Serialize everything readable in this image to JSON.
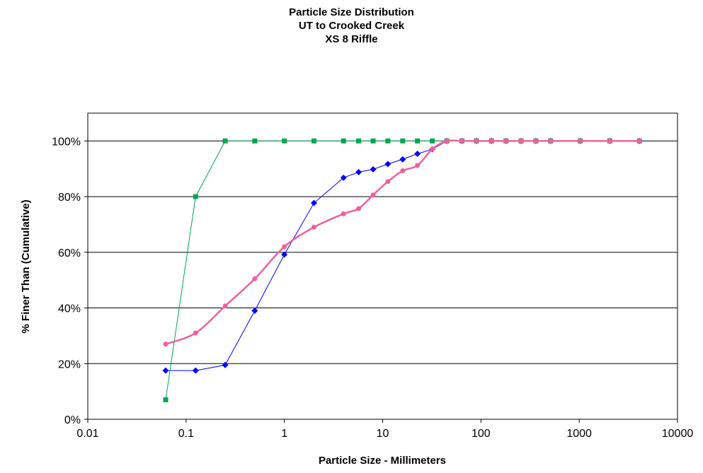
{
  "chart_data": {
    "type": "line",
    "title_lines": [
      "Particle Size Distribution",
      "UT to Crooked Creek",
      "XS 8 Riffle"
    ],
    "xlabel": "Particle Size - Millimeters",
    "ylabel": "% Finer Than (Cumulative)",
    "x_scale": "log",
    "xlim": [
      0.01,
      10000
    ],
    "ylim": [
      0,
      1.1
    ],
    "x_ticks": [
      0.01,
      0.1,
      1,
      10,
      100,
      1000,
      10000
    ],
    "x_tick_labels": [
      "0.01",
      "0.1",
      "1",
      "10",
      "100",
      "1000",
      "10000"
    ],
    "y_ticks": [
      0,
      0.2,
      0.4,
      0.6,
      0.8,
      1.0
    ],
    "y_tick_labels": [
      "0%",
      "20%",
      "40%",
      "60%",
      "80%",
      "100%"
    ],
    "grid": "horizontal",
    "legend": "none",
    "series": [
      {
        "color": "#0000ff",
        "marker": "diamond",
        "smooth": false,
        "x": [
          0.062,
          0.125,
          0.25,
          0.5,
          1,
          2,
          4,
          5.7,
          8,
          11.3,
          16,
          22.6,
          32,
          45,
          64,
          90,
          128,
          180,
          256,
          362,
          512,
          1024,
          2048,
          4096
        ],
        "y": [
          0.175,
          0.175,
          0.195,
          0.39,
          0.592,
          0.777,
          0.868,
          0.888,
          0.898,
          0.917,
          0.934,
          0.954,
          0.97,
          1.0,
          1.0,
          1.0,
          1.0,
          1.0,
          1.0,
          1.0,
          1.0,
          1.0,
          1.0,
          1.0
        ]
      },
      {
        "color": "#00a650",
        "marker": "square",
        "smooth": false,
        "x": [
          0.062,
          0.125,
          0.25,
          0.5,
          1,
          2,
          4,
          5.7,
          8,
          11.3,
          16,
          22.6,
          32,
          45,
          64,
          90,
          128,
          180,
          256,
          362,
          512,
          1024,
          2048,
          4096
        ],
        "y": [
          0.07,
          0.8,
          1.0,
          1.0,
          1.0,
          1.0,
          1.0,
          1.0,
          1.0,
          1.0,
          1.0,
          1.0,
          1.0,
          1.0,
          1.0,
          1.0,
          1.0,
          1.0,
          1.0,
          1.0,
          1.0,
          1.0,
          1.0,
          1.0
        ]
      },
      {
        "color": "#f0609e",
        "marker": "circle",
        "smooth": true,
        "x": [
          0.062,
          0.125,
          0.25,
          0.5,
          1,
          2,
          4,
          5.7,
          8,
          11.3,
          16,
          22.6,
          32,
          45,
          64,
          90,
          128,
          180,
          256,
          362,
          512,
          1024,
          2048,
          4096
        ],
        "y": [
          0.27,
          0.31,
          0.407,
          0.505,
          0.62,
          0.69,
          0.738,
          0.757,
          0.806,
          0.854,
          0.893,
          0.912,
          0.971,
          1.0,
          1.0,
          1.0,
          1.0,
          1.0,
          1.0,
          1.0,
          1.0,
          1.0,
          1.0,
          1.0
        ]
      }
    ]
  }
}
